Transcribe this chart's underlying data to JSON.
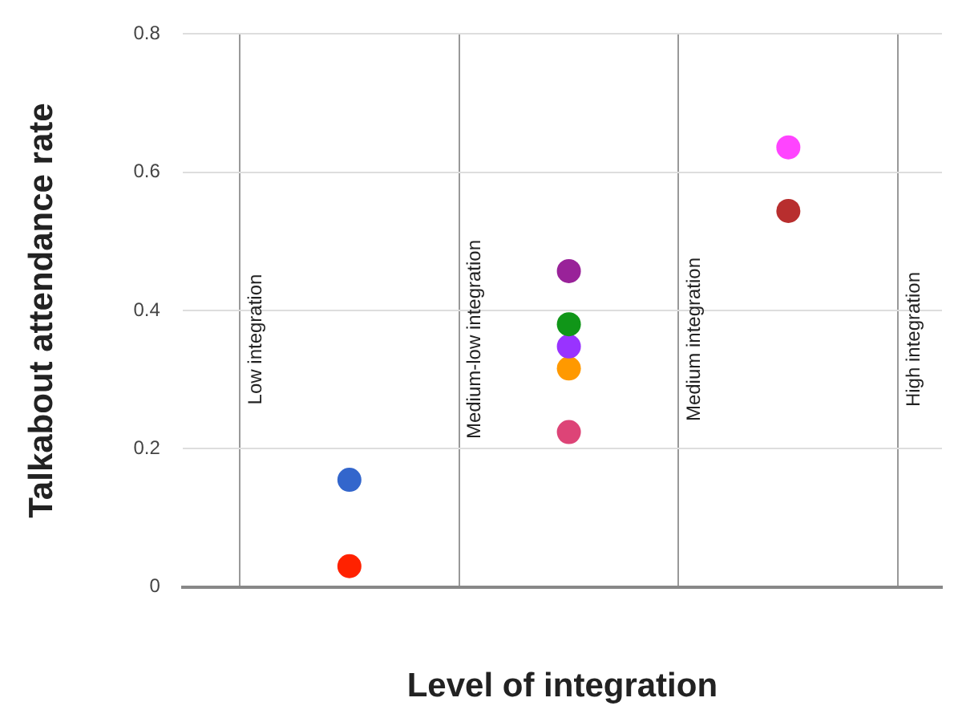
{
  "chart_data": {
    "type": "scatter",
    "xlabel": "Level of integration",
    "ylabel": "Talkabout attendance rate",
    "categories": [
      null,
      null,
      null
    ],
    "ylim": [
      0,
      0.8
    ],
    "yticks": [
      0,
      0.2,
      0.4,
      0.6,
      0.8
    ],
    "tick_labels": "y",
    "grid": true,
    "marker": "circle",
    "legend": false,
    "series": [
      {
        "values": [
          0.155,
          0.457,
          0.636
        ],
        "colors": [
          "#3366cc",
          "#992299",
          "#ff44ff"
        ]
      },
      {
        "values": [
          0.03,
          0.38,
          0.544
        ],
        "colors": [
          "#ff2200",
          "#109618",
          "#b82e2e"
        ]
      },
      {
        "values": [
          null,
          0.348,
          null
        ],
        "color": "#9933ff"
      },
      {
        "values": [
          null,
          0.316,
          null
        ],
        "color": "#ff9900"
      },
      {
        "values": [
          null,
          0.224,
          null
        ],
        "color": "#dd4477"
      }
    ],
    "annotations": [
      "Low integration",
      "Medium-low integration",
      "Medium integration",
      "High integration"
    ]
  }
}
